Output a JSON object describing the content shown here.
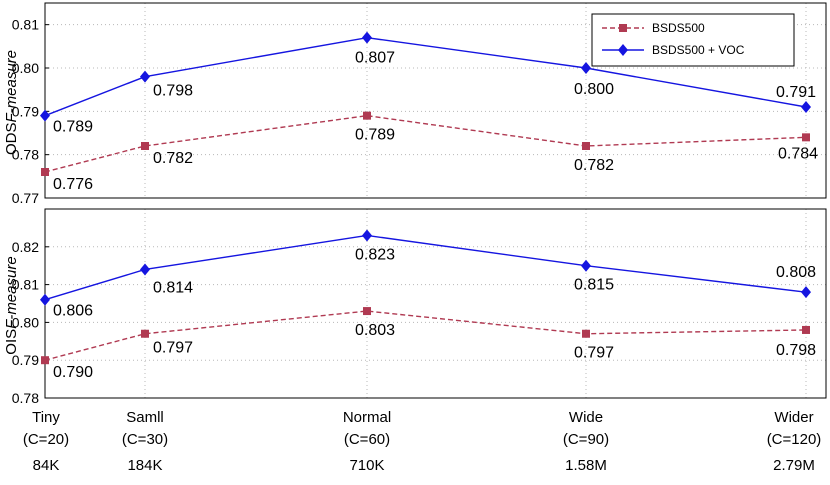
{
  "chart_data": [
    {
      "type": "line",
      "ylabel_prefix": "ODS",
      "ylabel_italic": "F-measure",
      "categories": [
        "Tiny",
        "Samll",
        "Normal",
        "Wide",
        "Wider"
      ],
      "x_params": [
        "(C=20)",
        "(C=30)",
        "(C=60)",
        "(C=90)",
        "(C=120)"
      ],
      "x_sizes": [
        "84K",
        "184K",
        "710K",
        "1.58M",
        "2.79M"
      ],
      "ylim": [
        0.77,
        0.815
      ],
      "yticks": [
        "0.77",
        "0.78",
        "0.79",
        "0.80",
        "0.81"
      ],
      "grid": true,
      "legend_position": "top-right",
      "series": [
        {
          "name": "BSDS500",
          "values": [
            0.776,
            0.782,
            0.789,
            0.782,
            0.784
          ],
          "labels": [
            "0.776",
            "0.782",
            "0.789",
            "0.782",
            "0.784"
          ],
          "color": "#b03a52",
          "marker": "square",
          "dashed": true
        },
        {
          "name": "BSDS500 + VOC",
          "values": [
            0.789,
            0.798,
            0.807,
            0.8,
            0.791
          ],
          "labels": [
            "0.789",
            "0.798",
            "0.807",
            "0.800",
            "0.791"
          ],
          "color": "#1515e0",
          "marker": "diamond",
          "dashed": false
        }
      ]
    },
    {
      "type": "line",
      "ylabel_prefix": "OIS",
      "ylabel_italic": "F-measure",
      "categories": [
        "Tiny",
        "Samll",
        "Normal",
        "Wide",
        "Wider"
      ],
      "x_params": [
        "(C=20)",
        "(C=30)",
        "(C=60)",
        "(C=90)",
        "(C=120)"
      ],
      "x_sizes": [
        "84K",
        "184K",
        "710K",
        "1.58M",
        "2.79M"
      ],
      "ylim": [
        0.78,
        0.83
      ],
      "yticks": [
        "0.78",
        "0.79",
        "0.80",
        "0.81",
        "0.82"
      ],
      "grid": true,
      "series": [
        {
          "name": "BSDS500",
          "values": [
            0.79,
            0.797,
            0.803,
            0.797,
            0.798
          ],
          "labels": [
            "0.790",
            "0.797",
            "0.803",
            "0.797",
            "0.798"
          ],
          "color": "#b03a52",
          "marker": "square",
          "dashed": true
        },
        {
          "name": "BSDS500 + VOC",
          "values": [
            0.806,
            0.814,
            0.823,
            0.815,
            0.808
          ],
          "labels": [
            "0.806",
            "0.814",
            "0.823",
            "0.815",
            "0.808"
          ],
          "color": "#1515e0",
          "marker": "diamond",
          "dashed": false
        }
      ]
    }
  ]
}
